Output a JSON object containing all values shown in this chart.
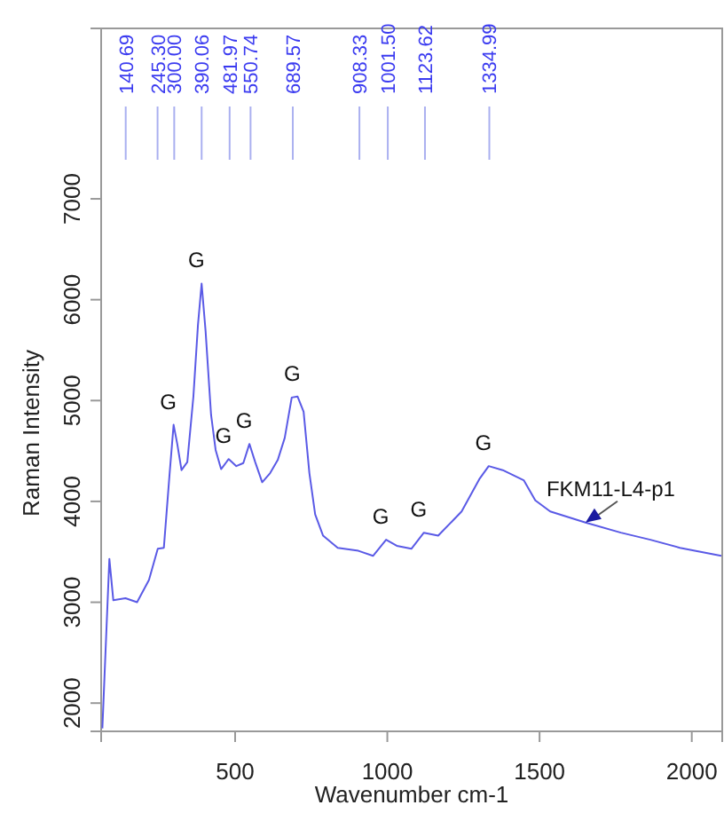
{
  "chart_data": {
    "type": "line",
    "xlabel": "Wavenumber cm-1",
    "ylabel": "Raman Intensity",
    "xlim": [
      60,
      2100
    ],
    "ylim": [
      1720,
      8690
    ],
    "xticks": [
      500,
      1000,
      1500,
      2000
    ],
    "yticks": [
      2000,
      3000,
      4000,
      5000,
      6000,
      7000
    ],
    "series": [
      {
        "name": "FKM11-L4-p1",
        "color": "#5a5ae6",
        "x": [
          64,
          87,
          100,
          140,
          178,
          217,
          246,
          266,
          285,
          298,
          310,
          324,
          343,
          363,
          378,
          390,
          403,
          421,
          436,
          454,
          479,
          504,
          527,
          547,
          566,
          589,
          615,
          640,
          663,
          686,
          705,
          725,
          744,
          763,
          789,
          837,
          905,
          953,
          996,
          1031,
          1079,
          1120,
          1167,
          1244,
          1302,
          1333,
          1379,
          1448,
          1486,
          1535,
          1651,
          1767,
          1864,
          1961,
          2097
        ],
        "values": [
          1750,
          3430,
          3020,
          3040,
          3000,
          3220,
          3530,
          3540,
          4280,
          4760,
          4570,
          4310,
          4390,
          5040,
          5750,
          6160,
          5690,
          4860,
          4510,
          4320,
          4420,
          4350,
          4380,
          4570,
          4390,
          4190,
          4280,
          4410,
          4630,
          5030,
          5040,
          4890,
          4280,
          3870,
          3660,
          3540,
          3510,
          3460,
          3620,
          3560,
          3530,
          3690,
          3660,
          3900,
          4220,
          4350,
          4310,
          4210,
          4010,
          3900,
          3790,
          3690,
          3620,
          3540,
          3460
        ]
      }
    ],
    "ref_lines": [
      {
        "axis": "x",
        "value": 140.69,
        "label": "140.69",
        "color": "#aab0f0"
      },
      {
        "axis": "x",
        "value": 245.3,
        "label": "245.30",
        "color": "#aab0f0"
      },
      {
        "axis": "x",
        "value": 300,
        "label": "300.00",
        "color": "#aab0f0"
      },
      {
        "axis": "x",
        "value": 390.06,
        "label": "390.06",
        "color": "#aab0f0"
      },
      {
        "axis": "x",
        "value": 481.97,
        "label": "481.97",
        "color": "#aab0f0"
      },
      {
        "axis": "x",
        "value": 550.74,
        "label": "550.74",
        "color": "#aab0f0"
      },
      {
        "axis": "x",
        "value": 689.57,
        "label": "689.57",
        "color": "#aab0f0"
      },
      {
        "axis": "x",
        "value": 908.33,
        "label": "908.33",
        "color": "#aab0f0"
      },
      {
        "axis": "x",
        "value": 1001.5,
        "label": "1001.50",
        "color": "#aab0f0"
      },
      {
        "axis": "x",
        "value": 1123.62,
        "label": "1123.62",
        "color": "#aab0f0"
      },
      {
        "axis": "x",
        "value": 1334.99,
        "label": "1334.99",
        "color": "#aab0f0"
      }
    ],
    "annotations": [
      {
        "text": "G",
        "x": 298,
        "y": 4760
      },
      {
        "text": "G",
        "x": 390,
        "y": 6160
      },
      {
        "text": "G",
        "x": 479,
        "y": 4420
      },
      {
        "text": "G",
        "x": 547,
        "y": 4570
      },
      {
        "text": "G",
        "x": 705,
        "y": 5040
      },
      {
        "text": "G",
        "x": 996,
        "y": 3620
      },
      {
        "text": "G",
        "x": 1120,
        "y": 3690
      },
      {
        "text": "G",
        "x": 1333,
        "y": 4350
      }
    ]
  }
}
